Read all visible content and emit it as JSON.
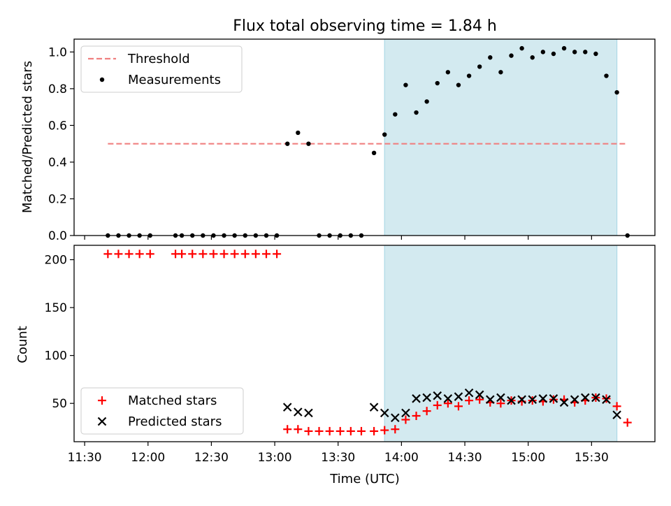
{
  "chart_data": {
    "title": "Flux total observing time = 1.84 h",
    "xlabel": "Time (UTC)",
    "x_unit": "minutes since 11:30",
    "xlim": [
      -5,
      270
    ],
    "xticks": [
      0,
      30,
      60,
      90,
      120,
      150,
      180,
      210,
      240
    ],
    "xtick_labels": [
      "11:30",
      "12:00",
      "12:30",
      "13:00",
      "13:30",
      "14:00",
      "14:30",
      "15:00",
      "15:30"
    ],
    "shaded_interval": [
      142,
      252
    ],
    "shade_color": "#d3eaf0",
    "panels": [
      {
        "type": "scatter",
        "ylabel": "Matched/Predicted stars",
        "ylim": [
          0,
          1.07
        ],
        "yticks": [
          0.0,
          0.2,
          0.4,
          0.6,
          0.8,
          1.0
        ],
        "ytick_labels": [
          "0.0",
          "0.2",
          "0.4",
          "0.6",
          "0.8",
          "1.0"
        ],
        "legend": [
          {
            "label": "Threshold",
            "marker": "dashed-line",
            "color": "#f08080"
          },
          {
            "label": "Measurements",
            "marker": "dot",
            "color": "#000000"
          }
        ],
        "series": [
          {
            "name": "Threshold",
            "style": "dashed",
            "color": "#f08080",
            "x": [
              11,
              257
            ],
            "y": [
              0.5,
              0.5
            ]
          },
          {
            "name": "Measurements",
            "style": "dot",
            "color": "#000000",
            "x": [
              11,
              16,
              21,
              26,
              31,
              43,
              46,
              51,
              56,
              61,
              66,
              71,
              76,
              81,
              86,
              91,
              96,
              101,
              106,
              111,
              116,
              121,
              126,
              131,
              137,
              142,
              147,
              152,
              157,
              162,
              167,
              172,
              177,
              182,
              187,
              192,
              197,
              202,
              207,
              212,
              217,
              222,
              227,
              232,
              237,
              242,
              247,
              252,
              257
            ],
            "y": [
              0,
              0,
              0,
              0,
              0,
              0,
              0,
              0,
              0,
              0,
              0,
              0,
              0,
              0,
              0,
              0,
              0.5,
              0.56,
              0.5,
              0,
              0,
              0,
              0,
              0,
              0.45,
              0.55,
              0.66,
              0.82,
              0.67,
              0.73,
              0.83,
              0.89,
              0.82,
              0.87,
              0.92,
              0.97,
              0.89,
              0.98,
              1.02,
              0.97,
              1.0,
              0.99,
              1.02,
              1.0,
              1.0,
              0.99,
              0.87,
              0.78,
              0
            ]
          }
        ]
      },
      {
        "type": "scatter",
        "ylabel": "Count",
        "ylim": [
          10,
          215
        ],
        "yticks": [
          50,
          100,
          150,
          200
        ],
        "ytick_labels": [
          "50",
          "100",
          "150",
          "200"
        ],
        "legend": [
          {
            "label": "Matched stars",
            "marker": "plus",
            "color": "#ff0000"
          },
          {
            "label": "Predicted stars",
            "marker": "x",
            "color": "#000000"
          }
        ],
        "series": [
          {
            "name": "Matched stars",
            "marker": "plus",
            "color": "#ff0000",
            "x": [
              11,
              16,
              21,
              26,
              31,
              43,
              46,
              51,
              56,
              61,
              66,
              71,
              76,
              81,
              86,
              91,
              96,
              101,
              106,
              111,
              116,
              121,
              126,
              131,
              137,
              142,
              147,
              152,
              157,
              162,
              167,
              172,
              177,
              182,
              187,
              192,
              197,
              202,
              207,
              212,
              217,
              222,
              227,
              232,
              237,
              242,
              247,
              252,
              257
            ],
            "y": [
              206,
              206,
              206,
              206,
              206,
              206,
              206,
              206,
              206,
              206,
              206,
              206,
              206,
              206,
              206,
              206,
              23,
              23,
              21,
              21,
              21,
              21,
              21,
              21,
              21,
              22,
              23,
              33,
              37,
              42,
              48,
              50,
              47,
              53,
              54,
              51,
              50,
              53,
              52,
              53,
              52,
              54,
              54,
              51,
              53,
              56,
              55,
              47,
              30
            ]
          },
          {
            "name": "Predicted stars",
            "marker": "x",
            "color": "#000000",
            "x": [
              96,
              101,
              106,
              137,
              142,
              147,
              152,
              157,
              162,
              167,
              172,
              177,
              182,
              187,
              192,
              197,
              202,
              207,
              212,
              217,
              222,
              227,
              232,
              237,
              242,
              247,
              252
            ],
            "y": [
              46,
              41,
              40,
              46,
              40,
              35,
              40,
              55,
              56,
              58,
              55,
              57,
              61,
              59,
              54,
              56,
              53,
              54,
              54,
              55,
              55,
              51,
              54,
              56,
              56,
              54,
              38
            ]
          }
        ]
      }
    ]
  }
}
